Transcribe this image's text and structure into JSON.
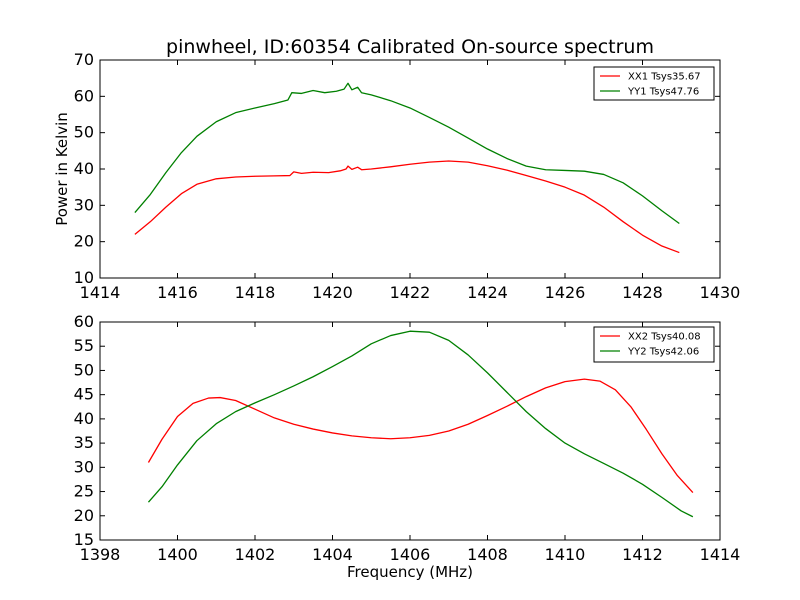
{
  "chart_data": [
    {
      "type": "line",
      "title": "pinwheel, ID:60354 Calibrated On-source spectrum",
      "xlabel": "",
      "ylabel": "Power in Kelvin",
      "xlim": [
        1414,
        1430
      ],
      "ylim": [
        10,
        70
      ],
      "xticks": [
        1414,
        1416,
        1418,
        1420,
        1422,
        1424,
        1426,
        1428,
        1430
      ],
      "yticks": [
        10,
        20,
        30,
        40,
        50,
        60,
        70
      ],
      "legend_position": "top-right",
      "grid": false,
      "series": [
        {
          "name": "XX1 Tsys35.67",
          "color": "#ff0000",
          "x": [
            1414.9,
            1415.3,
            1415.7,
            1416.1,
            1416.5,
            1417.0,
            1417.5,
            1418.0,
            1418.5,
            1418.9,
            1419.0,
            1419.2,
            1419.5,
            1419.9,
            1420.2,
            1420.35,
            1420.4,
            1420.5,
            1420.65,
            1420.75,
            1421.0,
            1421.5,
            1422.0,
            1422.5,
            1423.0,
            1423.5,
            1424.0,
            1424.5,
            1425.0,
            1425.5,
            1426.0,
            1426.5,
            1427.0,
            1427.5,
            1428.0,
            1428.5,
            1428.95
          ],
          "y": [
            22.0,
            25.5,
            29.5,
            33.2,
            35.8,
            37.3,
            37.8,
            38.0,
            38.1,
            38.2,
            39.2,
            38.8,
            39.1,
            39.0,
            39.5,
            40.0,
            40.8,
            39.9,
            40.5,
            39.8,
            40.0,
            40.6,
            41.3,
            41.9,
            42.2,
            41.9,
            40.9,
            39.7,
            38.2,
            36.7,
            35.0,
            32.8,
            29.5,
            25.5,
            21.8,
            18.8,
            17.0
          ]
        },
        {
          "name": "YY1 Tsys47.76",
          "color": "#008000",
          "x": [
            1414.9,
            1415.3,
            1415.7,
            1416.1,
            1416.5,
            1417.0,
            1417.5,
            1418.0,
            1418.5,
            1418.85,
            1418.95,
            1419.2,
            1419.5,
            1419.8,
            1420.1,
            1420.3,
            1420.4,
            1420.5,
            1420.65,
            1420.75,
            1421.0,
            1421.5,
            1422.0,
            1422.5,
            1423.0,
            1423.5,
            1424.0,
            1424.5,
            1425.0,
            1425.5,
            1426.0,
            1426.5,
            1427.0,
            1427.5,
            1428.0,
            1428.5,
            1428.95
          ],
          "y": [
            28.0,
            33.0,
            39.0,
            44.5,
            49.0,
            53.0,
            55.5,
            56.8,
            58.0,
            59.0,
            61.0,
            60.8,
            61.6,
            61.0,
            61.4,
            62.0,
            63.6,
            61.8,
            62.5,
            61.0,
            60.4,
            58.8,
            56.8,
            54.2,
            51.5,
            48.5,
            45.5,
            42.9,
            40.8,
            39.8,
            39.6,
            39.4,
            38.5,
            36.2,
            32.6,
            28.5,
            25.0
          ]
        }
      ]
    },
    {
      "type": "line",
      "title": "",
      "xlabel": "Frequency (MHz)",
      "ylabel": "",
      "xlim": [
        1398,
        1414
      ],
      "ylim": [
        15,
        60
      ],
      "xticks": [
        1398,
        1400,
        1402,
        1404,
        1406,
        1408,
        1410,
        1412,
        1414
      ],
      "yticks": [
        15,
        20,
        25,
        30,
        35,
        40,
        45,
        50,
        55,
        60
      ],
      "legend_position": "top-right",
      "grid": false,
      "series": [
        {
          "name": "XX2 Tsys40.08",
          "color": "#ff0000",
          "x": [
            1399.25,
            1399.6,
            1400.0,
            1400.4,
            1400.8,
            1401.1,
            1401.5,
            1402.0,
            1402.5,
            1403.0,
            1403.5,
            1404.0,
            1404.5,
            1405.0,
            1405.5,
            1406.0,
            1406.5,
            1407.0,
            1407.5,
            1408.0,
            1408.5,
            1409.0,
            1409.5,
            1410.0,
            1410.5,
            1410.9,
            1411.3,
            1411.7,
            1412.1,
            1412.5,
            1412.9,
            1413.3
          ],
          "y": [
            31.0,
            35.8,
            40.5,
            43.2,
            44.3,
            44.4,
            43.8,
            42.0,
            40.2,
            38.9,
            37.9,
            37.1,
            36.5,
            36.1,
            35.9,
            36.1,
            36.6,
            37.5,
            38.9,
            40.7,
            42.6,
            44.6,
            46.4,
            47.7,
            48.2,
            47.8,
            46.0,
            42.5,
            37.8,
            32.8,
            28.3,
            24.8
          ]
        },
        {
          "name": "YY2 Tsys42.06",
          "color": "#008000",
          "x": [
            1399.25,
            1399.6,
            1400.0,
            1400.5,
            1401.0,
            1401.5,
            1402.0,
            1402.5,
            1403.0,
            1403.5,
            1404.0,
            1404.5,
            1405.0,
            1405.5,
            1406.0,
            1406.5,
            1407.0,
            1407.5,
            1408.0,
            1408.5,
            1409.0,
            1409.5,
            1410.0,
            1410.5,
            1411.0,
            1411.5,
            1412.0,
            1412.5,
            1413.0,
            1413.3
          ],
          "y": [
            22.8,
            26.0,
            30.5,
            35.5,
            39.0,
            41.5,
            43.3,
            45.0,
            46.8,
            48.7,
            50.8,
            53.0,
            55.5,
            57.2,
            58.1,
            57.9,
            56.2,
            53.2,
            49.5,
            45.5,
            41.5,
            38.0,
            35.0,
            32.8,
            30.8,
            28.8,
            26.5,
            23.8,
            21.0,
            19.8
          ]
        }
      ]
    }
  ]
}
